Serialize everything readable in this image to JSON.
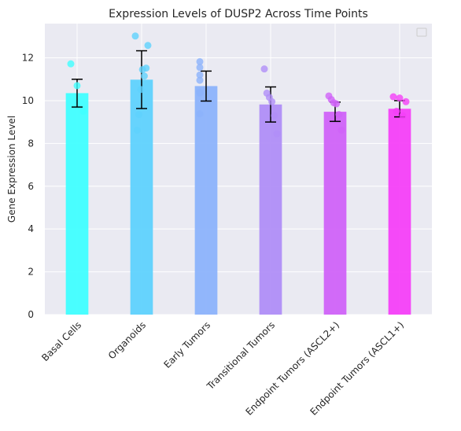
{
  "chart_data": {
    "type": "bar",
    "title": "Expression Levels of DUSP2 Across Time Points",
    "xlabel": "",
    "ylabel": "Gene Expression Level",
    "ylim": [
      0,
      13.6
    ],
    "yticks": [
      0,
      2,
      4,
      6,
      8,
      10,
      12
    ],
    "grid": true,
    "legend": "top-right",
    "legend_entries": [],
    "categories": [
      "Basal Cells",
      "Organoids",
      "Early Tumors",
      "Transitional Tumors",
      "Endpoint Tumors (ASCL2+)",
      "Endpoint Tumors (ASCL1+)"
    ],
    "values": [
      10.35,
      10.98,
      10.68,
      9.82,
      9.48,
      9.62
    ],
    "errors": [
      0.65,
      1.35,
      0.7,
      0.82,
      0.45,
      0.38
    ],
    "colors": [
      "#40ffff",
      "#5fd2fd",
      "#8cb3fb",
      "#b08ef7",
      "#d063f8",
      "#f540f8"
    ],
    "points": [
      [
        11.72,
        10.7,
        9.5
      ],
      [
        13.02,
        12.58,
        11.52,
        11.15,
        11.45,
        10.52,
        9.35,
        8.62
      ],
      [
        11.82,
        11.55,
        11.2,
        10.95,
        10.35,
        9.38,
        10.4
      ],
      [
        11.48,
        10.35,
        10.15,
        9.95,
        9.3,
        8.45
      ],
      [
        10.22,
        10.05,
        9.9,
        9.85,
        9.35,
        8.62
      ],
      [
        10.18,
        10.12,
        9.95,
        9.5,
        9.3
      ]
    ]
  }
}
